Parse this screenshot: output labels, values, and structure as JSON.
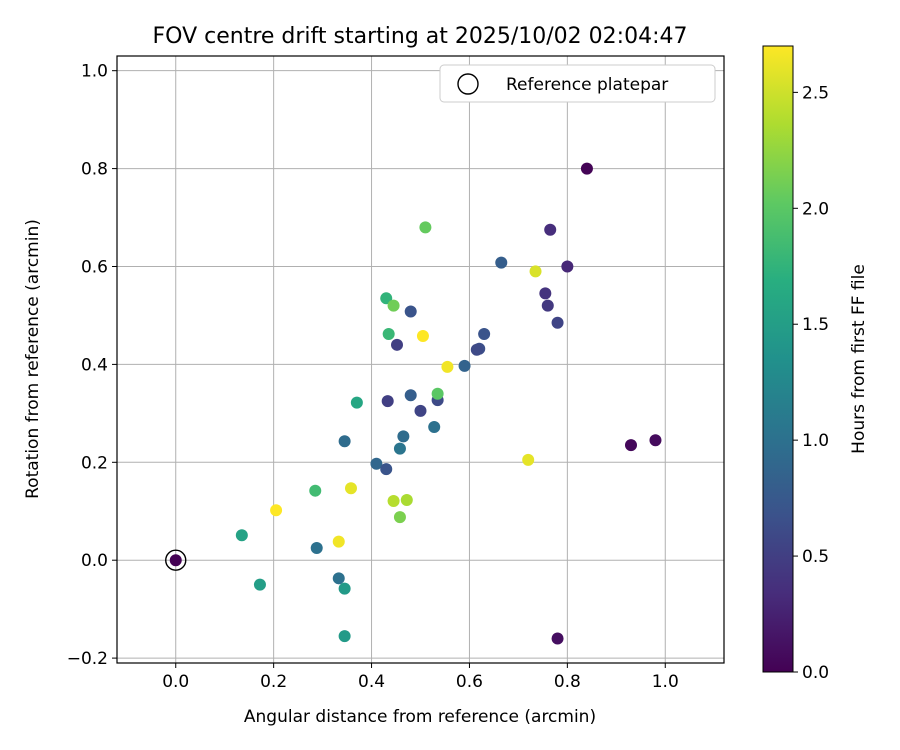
{
  "chart_data": {
    "type": "scatter",
    "title": "FOV centre drift starting at 2025/10/02 02:04:47",
    "xlabel": "Angular distance from reference (arcmin)",
    "ylabel": "Rotation from reference (arcmin)",
    "xlim": [
      -0.12,
      1.12
    ],
    "ylim": [
      -0.21,
      1.03
    ],
    "xticks": [
      0.0,
      0.2,
      0.4,
      0.6,
      0.8,
      1.0
    ],
    "xtick_labels": [
      "0.0",
      "0.2",
      "0.4",
      "0.6",
      "0.8",
      "1.0"
    ],
    "yticks": [
      -0.2,
      0.0,
      0.2,
      0.4,
      0.6,
      0.8,
      1.0
    ],
    "ytick_labels": [
      "−0.2",
      "0.0",
      "0.2",
      "0.4",
      "0.6",
      "0.8",
      "1.0"
    ],
    "grid": true,
    "legend": {
      "position": "top-right",
      "label": "Reference platepar"
    },
    "reference_point": {
      "x": 0.0,
      "y": 0.0
    },
    "colorbar": {
      "label": "Hours from first FF file",
      "range": [
        0.0,
        2.7
      ],
      "ticks": [
        0.0,
        0.5,
        1.0,
        1.5,
        2.0,
        2.5
      ],
      "tick_labels": [
        "0.0",
        "0.5",
        "1.0",
        "1.5",
        "2.0",
        "2.5"
      ],
      "colormap": "viridis"
    },
    "points": [
      {
        "x": 0.0,
        "y": 0.0,
        "hours": 0.0
      },
      {
        "x": 0.84,
        "y": 0.8,
        "hours": 0.02
      },
      {
        "x": 0.93,
        "y": 0.235,
        "hours": 0.05
      },
      {
        "x": 0.98,
        "y": 0.245,
        "hours": 0.08
      },
      {
        "x": 0.78,
        "y": -0.16,
        "hours": 0.1
      },
      {
        "x": 0.765,
        "y": 0.675,
        "hours": 0.35
      },
      {
        "x": 0.8,
        "y": 0.6,
        "hours": 0.3
      },
      {
        "x": 0.755,
        "y": 0.545,
        "hours": 0.4
      },
      {
        "x": 0.76,
        "y": 0.52,
        "hours": 0.45
      },
      {
        "x": 0.78,
        "y": 0.485,
        "hours": 0.55
      },
      {
        "x": 0.665,
        "y": 0.608,
        "hours": 0.8
      },
      {
        "x": 0.63,
        "y": 0.462,
        "hours": 0.7
      },
      {
        "x": 0.62,
        "y": 0.432,
        "hours": 0.65
      },
      {
        "x": 0.615,
        "y": 0.43,
        "hours": 0.6
      },
      {
        "x": 0.59,
        "y": 0.397,
        "hours": 0.85
      },
      {
        "x": 0.48,
        "y": 0.508,
        "hours": 0.7
      },
      {
        "x": 0.452,
        "y": 0.44,
        "hours": 0.5
      },
      {
        "x": 0.433,
        "y": 0.325,
        "hours": 0.5
      },
      {
        "x": 0.48,
        "y": 0.337,
        "hours": 0.8
      },
      {
        "x": 0.5,
        "y": 0.305,
        "hours": 0.55
      },
      {
        "x": 0.535,
        "y": 0.327,
        "hours": 0.6
      },
      {
        "x": 0.528,
        "y": 0.272,
        "hours": 1.0
      },
      {
        "x": 0.465,
        "y": 0.253,
        "hours": 0.95
      },
      {
        "x": 0.458,
        "y": 0.228,
        "hours": 1.05
      },
      {
        "x": 0.41,
        "y": 0.197,
        "hours": 0.9
      },
      {
        "x": 0.43,
        "y": 0.186,
        "hours": 0.7
      },
      {
        "x": 0.345,
        "y": 0.243,
        "hours": 0.95
      },
      {
        "x": 0.288,
        "y": 0.025,
        "hours": 1.0
      },
      {
        "x": 0.333,
        "y": -0.037,
        "hours": 1.0
      },
      {
        "x": 0.345,
        "y": -0.058,
        "hours": 1.45
      },
      {
        "x": 0.345,
        "y": -0.155,
        "hours": 1.45
      },
      {
        "x": 0.172,
        "y": -0.05,
        "hours": 1.5
      },
      {
        "x": 0.135,
        "y": 0.051,
        "hours": 1.55
      },
      {
        "x": 0.285,
        "y": 0.142,
        "hours": 1.85
      },
      {
        "x": 0.37,
        "y": 0.322,
        "hours": 1.6
      },
      {
        "x": 0.43,
        "y": 0.535,
        "hours": 1.75
      },
      {
        "x": 0.435,
        "y": 0.462,
        "hours": 1.8
      },
      {
        "x": 0.445,
        "y": 0.52,
        "hours": 2.1
      },
      {
        "x": 0.51,
        "y": 0.68,
        "hours": 2.05
      },
      {
        "x": 0.535,
        "y": 0.34,
        "hours": 2.0
      },
      {
        "x": 0.458,
        "y": 0.088,
        "hours": 2.15
      },
      {
        "x": 0.445,
        "y": 0.121,
        "hours": 2.4
      },
      {
        "x": 0.472,
        "y": 0.123,
        "hours": 2.35
      },
      {
        "x": 0.358,
        "y": 0.147,
        "hours": 2.6
      },
      {
        "x": 0.333,
        "y": 0.038,
        "hours": 2.65
      },
      {
        "x": 0.205,
        "y": 0.102,
        "hours": 2.7
      },
      {
        "x": 0.505,
        "y": 0.458,
        "hours": 2.7
      },
      {
        "x": 0.555,
        "y": 0.395,
        "hours": 2.65
      },
      {
        "x": 0.735,
        "y": 0.59,
        "hours": 2.55
      },
      {
        "x": 0.72,
        "y": 0.205,
        "hours": 2.6
      }
    ]
  }
}
